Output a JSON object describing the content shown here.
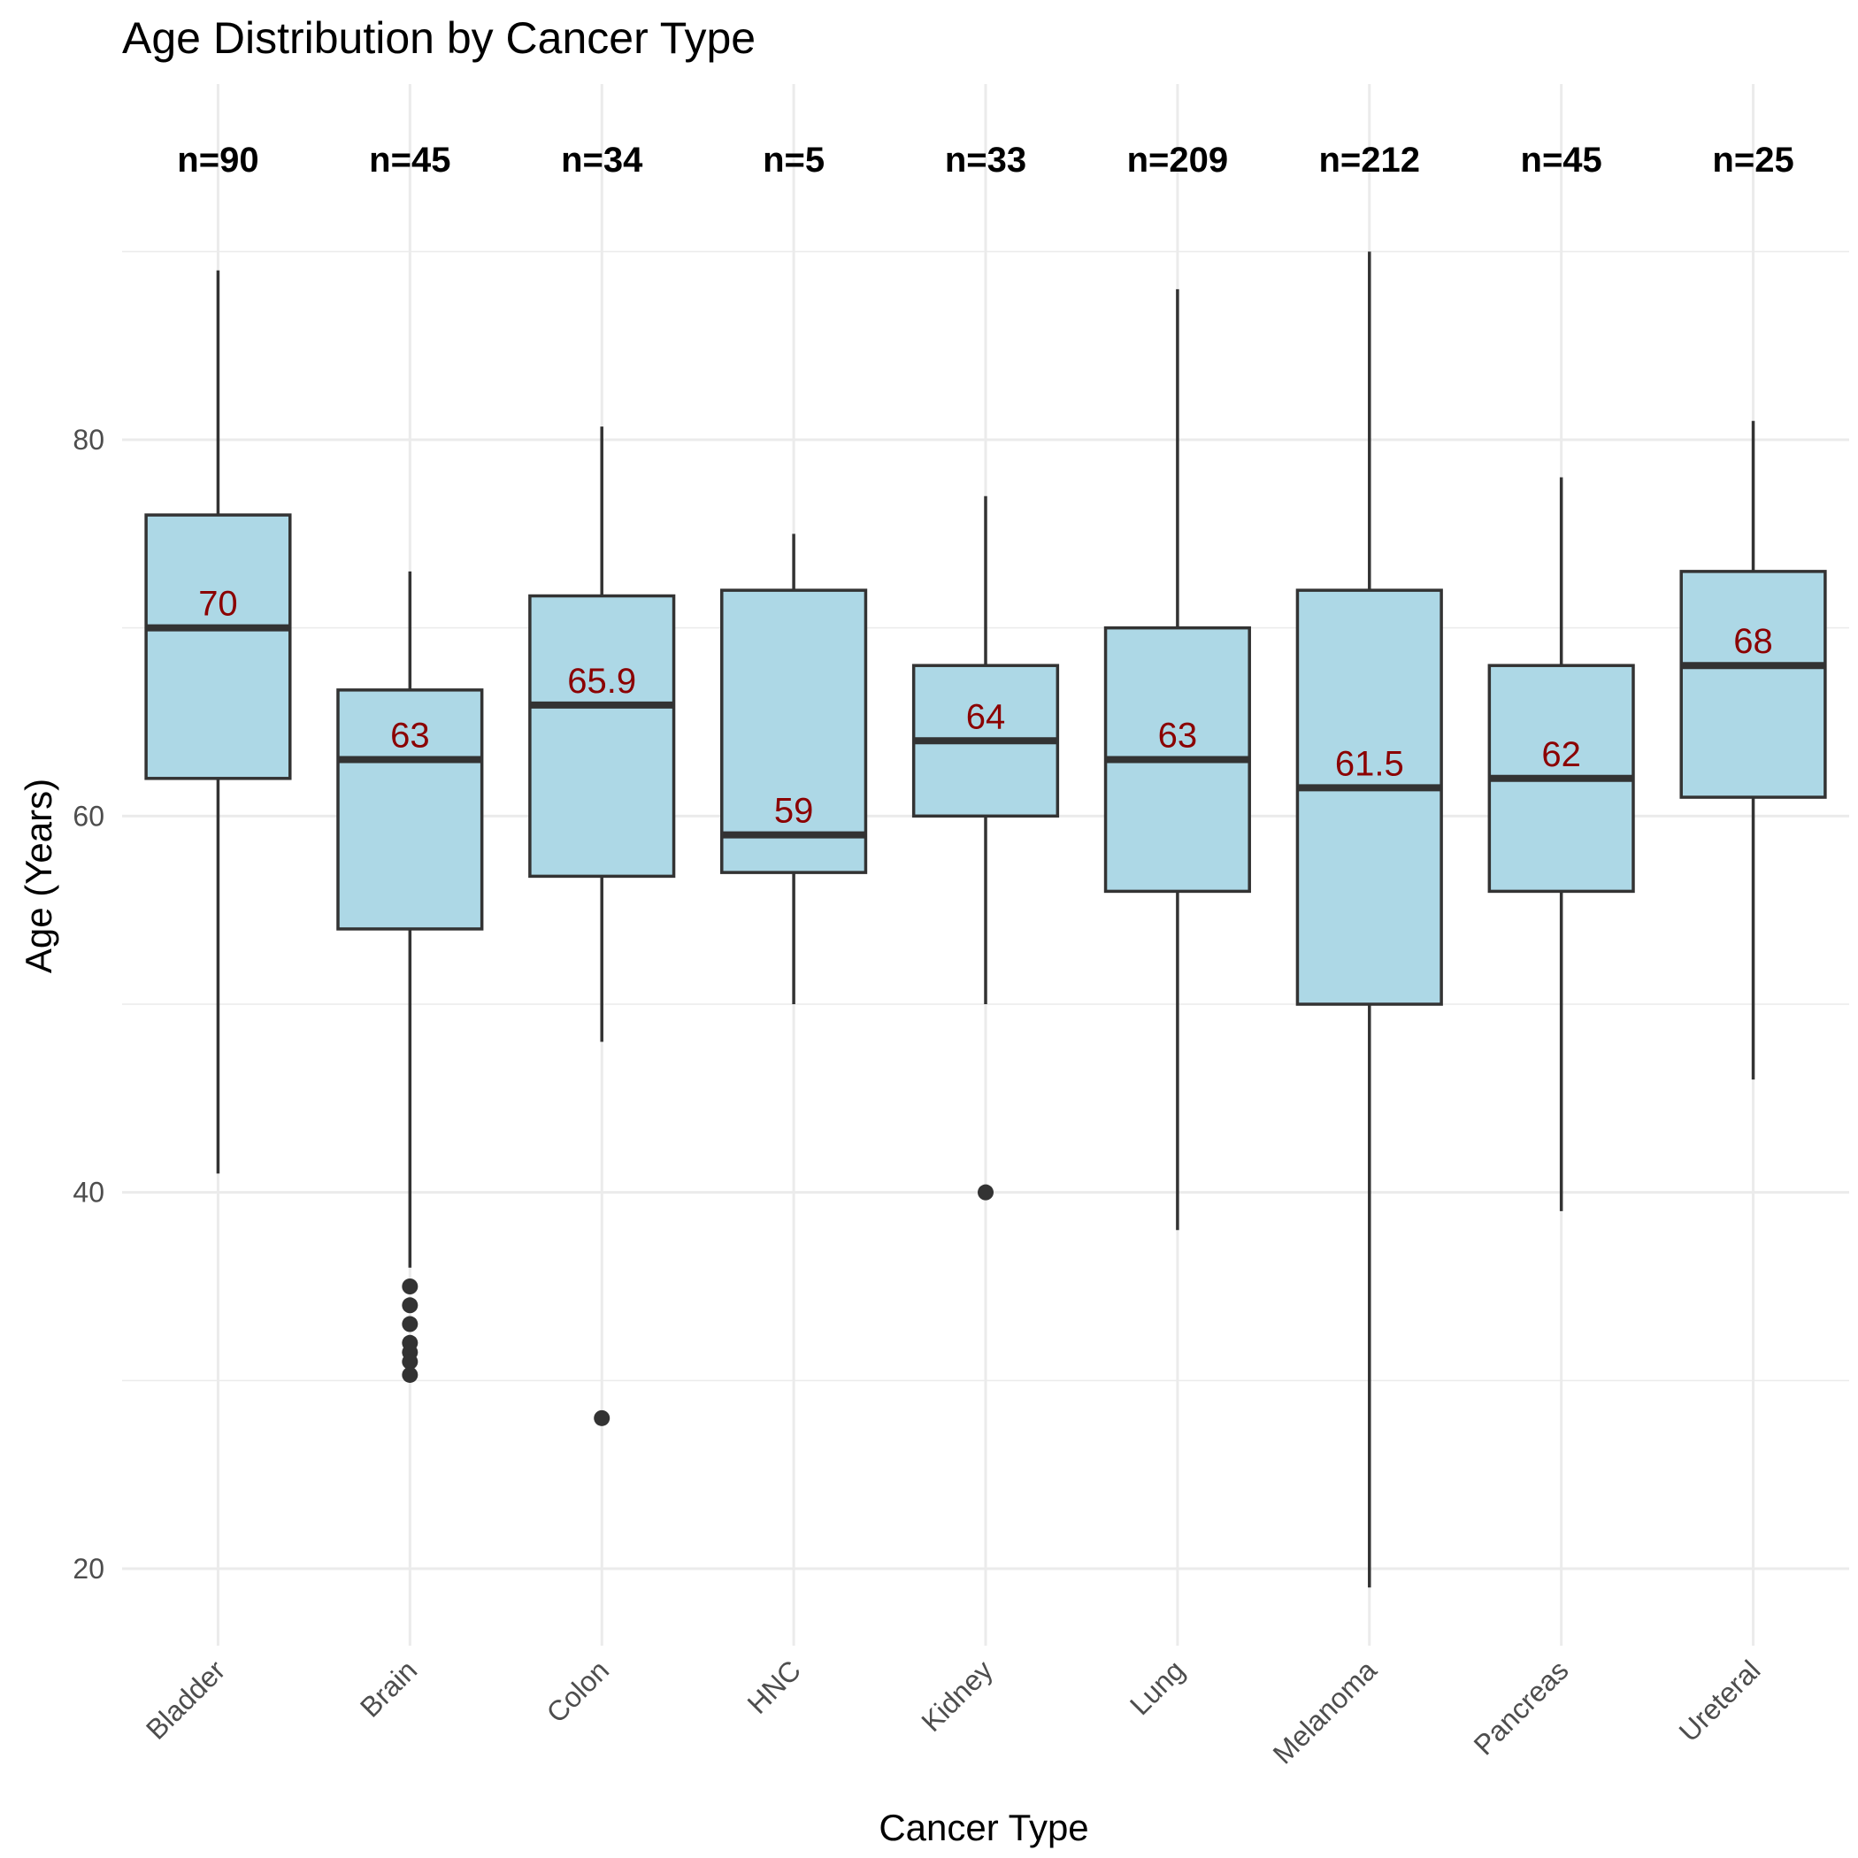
{
  "chart_data": {
    "type": "box",
    "title": "Age Distribution by Cancer Type",
    "xlabel": "Cancer Type",
    "ylabel": "Age (Years)",
    "ylim": [
      15,
      92
    ],
    "yticks": [
      "20",
      "40",
      "60",
      "80"
    ],
    "grid": true,
    "box_fill": "#add8e6",
    "box_stroke": "#333333",
    "median_label_color": "#8b0000",
    "categories": [
      "Bladder",
      "Brain",
      "Colon",
      "HNC",
      "Kidney",
      "Lung",
      "Melanoma",
      "Pancreas",
      "Ureteral"
    ],
    "boxes": [
      {
        "category": "Bladder",
        "n_label": "n=90",
        "median_label": "70",
        "min": 41,
        "q1": 62,
        "median": 70,
        "q3": 76,
        "max": 89,
        "outliers": []
      },
      {
        "category": "Brain",
        "n_label": "n=45",
        "median_label": "63",
        "min": 36,
        "q1": 54,
        "median": 63,
        "q3": 66.7,
        "max": 73,
        "outliers": [
          35,
          34,
          33,
          32,
          31.5,
          31,
          30.3
        ]
      },
      {
        "category": "Colon",
        "n_label": "n=34",
        "median_label": "65.9",
        "min": 48,
        "q1": 56.8,
        "median": 65.9,
        "q3": 71.7,
        "max": 80.7,
        "outliers": [
          28
        ]
      },
      {
        "category": "HNC",
        "n_label": "n=5",
        "median_label": "59",
        "min": 50,
        "q1": 57,
        "median": 59,
        "q3": 72,
        "max": 75,
        "outliers": []
      },
      {
        "category": "Kidney",
        "n_label": "n=33",
        "median_label": "64",
        "min": 50,
        "q1": 60,
        "median": 64,
        "q3": 68,
        "max": 77,
        "outliers": [
          40
        ]
      },
      {
        "category": "Lung",
        "n_label": "n=209",
        "median_label": "63",
        "min": 38,
        "q1": 56,
        "median": 63,
        "q3": 70,
        "max": 88,
        "outliers": []
      },
      {
        "category": "Melanoma",
        "n_label": "n=212",
        "median_label": "61.5",
        "min": 19,
        "q1": 50,
        "median": 61.5,
        "q3": 72,
        "max": 90,
        "outliers": []
      },
      {
        "category": "Pancreas",
        "n_label": "n=45",
        "median_label": "62",
        "min": 39,
        "q1": 56,
        "median": 62,
        "q3": 68,
        "max": 78,
        "outliers": []
      },
      {
        "category": "Ureteral",
        "n_label": "n=25",
        "median_label": "68",
        "min": 46,
        "q1": 61,
        "median": 68,
        "q3": 73,
        "max": 81,
        "outliers": []
      }
    ]
  }
}
